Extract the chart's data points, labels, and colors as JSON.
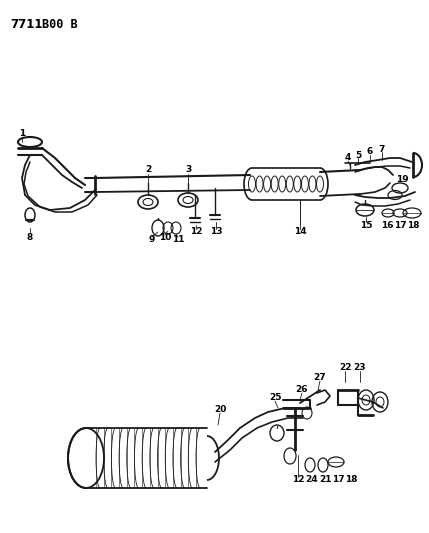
{
  "title_text": "7711 B00 B",
  "bg_color": "#ffffff",
  "line_color": "#1a1a1a",
  "text_color": "#000000",
  "lw": 1.1,
  "small_fontsize": 6.5
}
